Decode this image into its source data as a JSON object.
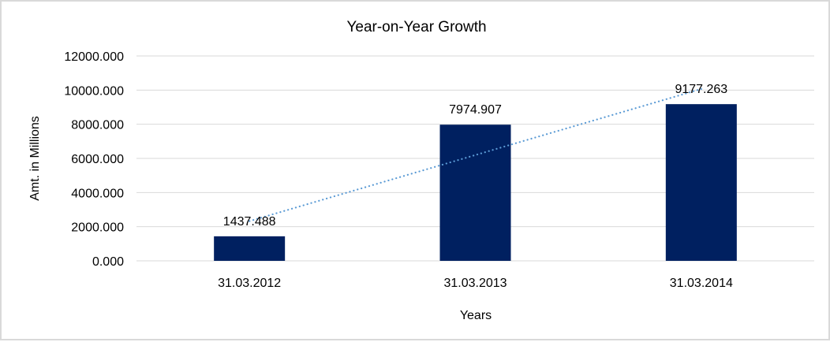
{
  "chart_data": {
    "type": "bar",
    "title": "Year-on-Year Growth",
    "xlabel": "Years",
    "ylabel": "Amt. in Millions",
    "categories": [
      "31.03.2012",
      "31.03.2013",
      "31.03.2014"
    ],
    "values": [
      1437.488,
      7974.907,
      9177.263
    ],
    "data_labels": [
      "1437.488",
      "7974.907",
      "9177.263"
    ],
    "ylim": [
      0,
      12000
    ],
    "yticks": [
      "0.000",
      "2000.000",
      "4000.000",
      "6000.000",
      "8000.000",
      "10000.000",
      "12000.000"
    ],
    "ytick_values": [
      0,
      2000,
      4000,
      6000,
      8000,
      10000,
      12000
    ],
    "trendline": "linear",
    "grid": true,
    "colors": {
      "bar": "#002060",
      "trend": "#5b9bd5",
      "grid": "#d9d9d9"
    }
  }
}
